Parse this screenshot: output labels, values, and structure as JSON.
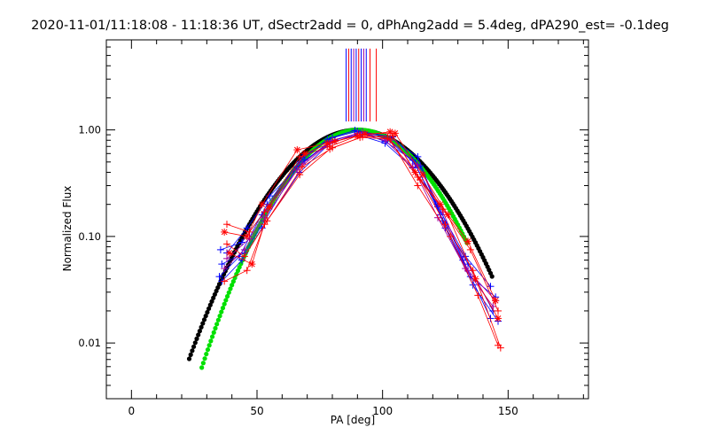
{
  "chart_data": {
    "type": "scatter",
    "title": "2020-11-01/11:18:08 - 11:18:36 UT, dSectr2add = 0, dPhAng2add = 5.4deg, dPA290_est= -0.1deg",
    "xlabel": "PA [deg]",
    "ylabel": "Normalized Flux",
    "xlim": [
      -10,
      182
    ],
    "ylim": [
      0.003,
      7.0
    ],
    "yscale": "log",
    "x_ticks": [
      0,
      50,
      100,
      150
    ],
    "x_tick_labels": [
      "0",
      "50",
      "100",
      "150"
    ],
    "y_ticks": [
      0.01,
      0.1,
      1.0
    ],
    "y_tick_labels": [
      "0.01",
      "0.10",
      "1.00"
    ],
    "colors": {
      "blue": "#0000ff",
      "red": "#ff0000",
      "purple": "#a000a0",
      "black": "#000000",
      "green": "#00e000"
    },
    "gaussian_fits": [
      {
        "name": "black-fit",
        "color": "#000000",
        "center": 90.0,
        "sigma": 21.3,
        "x_start": 23,
        "x_end": 144
      },
      {
        "name": "green-fit",
        "color": "#00e000",
        "center": 90.5,
        "sigma": 19.5,
        "x_start": 28,
        "x_end": 134
      }
    ],
    "pa_markers": {
      "y_from": 1.2,
      "y_to": 5.8,
      "lines": [
        {
          "x": 85.5,
          "color": "#0000ff"
        },
        {
          "x": 86.5,
          "color": "#ff0000"
        },
        {
          "x": 87.5,
          "color": "#0000ff"
        },
        {
          "x": 88.5,
          "color": "#a000a0"
        },
        {
          "x": 89.5,
          "color": "#0000ff"
        },
        {
          "x": 90.5,
          "color": "#ff0000"
        },
        {
          "x": 91.5,
          "color": "#0000ff"
        },
        {
          "x": 92.5,
          "color": "#a000a0"
        },
        {
          "x": 93.5,
          "color": "#0000ff"
        },
        {
          "x": 95.0,
          "color": "#ff0000"
        },
        {
          "x": 97.5,
          "color": "#ff0000"
        }
      ]
    },
    "series": [
      {
        "name": "blue-1",
        "color": "#0000ff",
        "marker": "plus",
        "x": [
          35.5,
          44,
          52,
          67,
          78,
          90,
          101,
          112,
          122,
          133,
          143
        ],
        "y": [
          0.075,
          0.088,
          0.16,
          0.5,
          0.82,
          0.97,
          0.78,
          0.52,
          0.19,
          0.065,
          0.034
        ]
      },
      {
        "name": "blue-2",
        "color": "#0000ff",
        "marker": "plus",
        "x": [
          36,
          45,
          53,
          66,
          79,
          91,
          102,
          113,
          123,
          134,
          144
        ],
        "y": [
          0.055,
          0.07,
          0.14,
          0.45,
          0.78,
          0.94,
          0.82,
          0.48,
          0.16,
          0.055,
          0.02
        ]
      },
      {
        "name": "blue-3",
        "color": "#0000ff",
        "marker": "plus",
        "x": [
          35,
          43,
          54,
          68,
          80,
          89,
          103,
          114,
          124,
          135,
          145
        ],
        "y": [
          0.042,
          0.065,
          0.2,
          0.55,
          0.85,
          0.99,
          0.84,
          0.56,
          0.14,
          0.042,
          0.027
        ]
      },
      {
        "name": "blue-4",
        "color": "#0000ff",
        "marker": "plus",
        "x": [
          36,
          44,
          52,
          67,
          79,
          90,
          101,
          112,
          122,
          132,
          143
        ],
        "y": [
          0.038,
          0.06,
          0.12,
          0.4,
          0.75,
          0.9,
          0.75,
          0.44,
          0.2,
          0.06,
          0.017
        ]
      },
      {
        "name": "blue-5",
        "color": "#0000ff",
        "marker": "plus",
        "x": [
          38,
          46,
          55,
          69,
          81,
          92,
          104,
          115,
          125,
          136,
          146
        ],
        "y": [
          0.07,
          0.12,
          0.24,
          0.52,
          0.8,
          0.96,
          0.86,
          0.46,
          0.12,
          0.035,
          0.016
        ]
      },
      {
        "name": "purple-1",
        "color": "#a000a0",
        "marker": "plus",
        "x": [
          37,
          45,
          53,
          66,
          78,
          90,
          101,
          112,
          122,
          133,
          144
        ],
        "y": [
          0.05,
          0.075,
          0.15,
          0.42,
          0.72,
          0.93,
          0.8,
          0.45,
          0.15,
          0.05,
          0.022
        ]
      },
      {
        "name": "purple-2",
        "color": "#a000a0",
        "marker": "plus",
        "x": [
          38,
          47,
          54,
          68,
          80,
          92,
          103,
          114,
          124,
          134,
          145
        ],
        "y": [
          0.062,
          0.095,
          0.18,
          0.48,
          0.8,
          0.95,
          0.8,
          0.47,
          0.17,
          0.048,
          0.025
        ]
      },
      {
        "name": "red-1",
        "color": "#ff0000",
        "marker": "star",
        "x": [
          37,
          46,
          52,
          66,
          78,
          90,
          103,
          113,
          123,
          134,
          145
        ],
        "y": [
          0.11,
          0.1,
          0.2,
          0.65,
          0.75,
          0.88,
          0.96,
          0.4,
          0.2,
          0.09,
          0.025
        ]
      },
      {
        "name": "red-2",
        "color": "#ff0000",
        "marker": "plus",
        "x": [
          38,
          47,
          53,
          67,
          79,
          91,
          102,
          114,
          124,
          135,
          146
        ],
        "y": [
          0.13,
          0.11,
          0.17,
          0.56,
          0.7,
          0.9,
          0.84,
          0.36,
          0.18,
          0.075,
          0.02
        ]
      },
      {
        "name": "red-3",
        "color": "#ff0000",
        "marker": "plus",
        "x": [
          38,
          45,
          54,
          68,
          80,
          92,
          104,
          115,
          125,
          136,
          147
        ],
        "y": [
          0.085,
          0.065,
          0.14,
          0.45,
          0.68,
          0.86,
          0.88,
          0.34,
          0.13,
          0.048,
          0.009
        ]
      },
      {
        "name": "red-4",
        "color": "#ff0000",
        "marker": "star",
        "x": [
          39,
          48,
          55,
          69,
          81,
          93,
          105,
          116,
          126,
          137,
          146
        ],
        "y": [
          0.07,
          0.055,
          0.19,
          0.6,
          0.78,
          0.92,
          0.93,
          0.38,
          0.16,
          0.04,
          0.017
        ]
      },
      {
        "name": "red-5",
        "color": "#ff0000",
        "marker": "plus",
        "x": [
          37,
          46,
          53,
          67,
          79,
          91,
          103,
          114,
          127,
          138,
          146
        ],
        "y": [
          0.038,
          0.048,
          0.13,
          0.38,
          0.66,
          0.85,
          0.82,
          0.3,
          0.1,
          0.028,
          0.0095
        ]
      }
    ]
  }
}
